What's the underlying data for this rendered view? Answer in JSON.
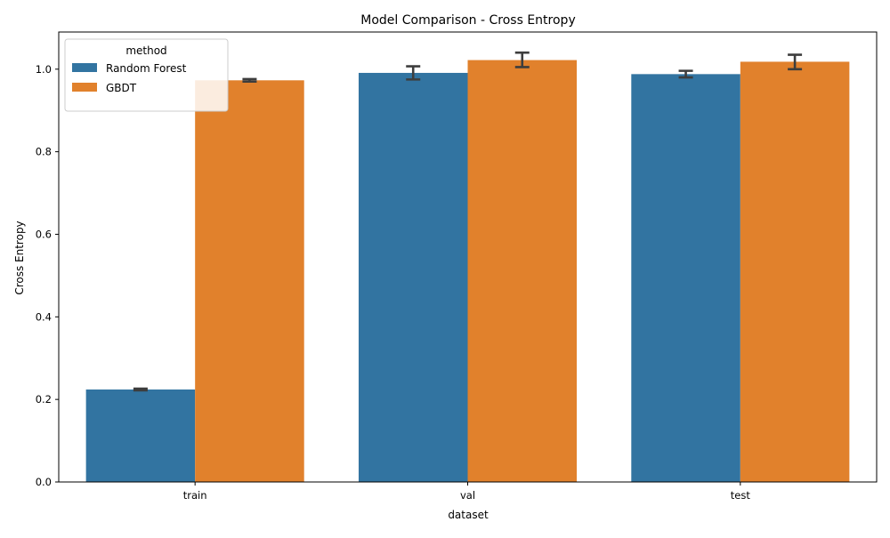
{
  "chart_data": {
    "type": "bar",
    "title": "Model Comparison - Cross Entropy",
    "xlabel": "dataset",
    "ylabel": "Cross Entropy",
    "categories": [
      "train",
      "val",
      "test"
    ],
    "ylim": [
      0,
      1.09
    ],
    "yticks": [
      0.0,
      0.2,
      0.4,
      0.6,
      0.8,
      1.0
    ],
    "ytick_labels": [
      "0.0",
      "0.2",
      "0.4",
      "0.6",
      "0.8",
      "1.0"
    ],
    "grid": false,
    "legend": {
      "title": "method",
      "placement": "top-left"
    },
    "series": [
      {
        "name": "Random Forest",
        "color": "#3274a1",
        "values": [
          0.224,
          0.991,
          0.988
        ],
        "err_low": [
          0.222,
          0.975,
          0.98
        ],
        "err_high": [
          0.226,
          1.007,
          0.996
        ]
      },
      {
        "name": "GBDT",
        "color": "#e1812c",
        "values": [
          0.973,
          1.022,
          1.018
        ],
        "err_low": [
          0.97,
          1.005,
          1.0
        ],
        "err_high": [
          0.976,
          1.04,
          1.035
        ]
      }
    ]
  }
}
